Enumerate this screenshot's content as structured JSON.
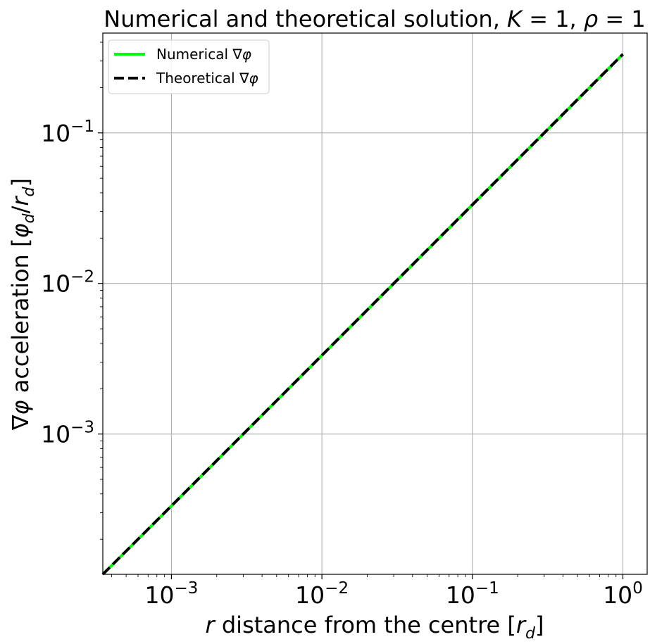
{
  "chart_data": {
    "type": "line",
    "title": {
      "prefix": "Numerical and theoretical solution, ",
      "k_symbol": "K",
      "k_eq": " = 1, ",
      "rho_symbol": "ρ",
      "rho_eq": " = 1"
    },
    "xlabel": {
      "var": "r",
      "text": " distance from the centre [",
      "unit_var": "r",
      "unit_sub": "d",
      "close": "]"
    },
    "ylabel": {
      "nabla": "∇",
      "phi": "φ",
      "text": " acceleration [",
      "unit_phi": "φ",
      "unit_phi_sub": "d",
      "slash": "/",
      "unit_r": "r",
      "unit_r_sub": "d",
      "close": "]"
    },
    "x_scale": "log",
    "y_scale": "log",
    "xlim": [
      0.00035,
      1.45
    ],
    "ylim": [
      0.000117,
      0.46
    ],
    "x_ticks": [
      {
        "value": 0.001,
        "base": "10",
        "exp": "−3"
      },
      {
        "value": 0.01,
        "base": "10",
        "exp": "−2"
      },
      {
        "value": 0.1,
        "base": "10",
        "exp": "−1"
      },
      {
        "value": 1,
        "base": "10",
        "exp": "0"
      }
    ],
    "y_ticks": [
      {
        "value": 0.001,
        "base": "10",
        "exp": "−3"
      },
      {
        "value": 0.01,
        "base": "10",
        "exp": "−2"
      },
      {
        "value": 0.1,
        "base": "10",
        "exp": "−1"
      }
    ],
    "grid": true,
    "legend_position": "top-left",
    "series": [
      {
        "name": "Numerical ∇φ",
        "label_prefix": "Numerical ∇",
        "label_symbol": "φ",
        "color": "#00ff00",
        "style": "solid",
        "x": [
          0.00035,
          0.001,
          0.01,
          0.1,
          1.0
        ],
        "y": [
          0.000117,
          0.000333,
          0.00333,
          0.0333,
          0.333
        ]
      },
      {
        "name": "Theoretical ∇φ",
        "label_prefix": "Theoretical ∇",
        "label_symbol": "φ",
        "color": "#000000",
        "style": "dashed",
        "x": [
          0.00035,
          0.001,
          0.01,
          0.1,
          1.0
        ],
        "y": [
          0.000117,
          0.000333,
          0.00333,
          0.0333,
          0.333
        ]
      }
    ]
  }
}
